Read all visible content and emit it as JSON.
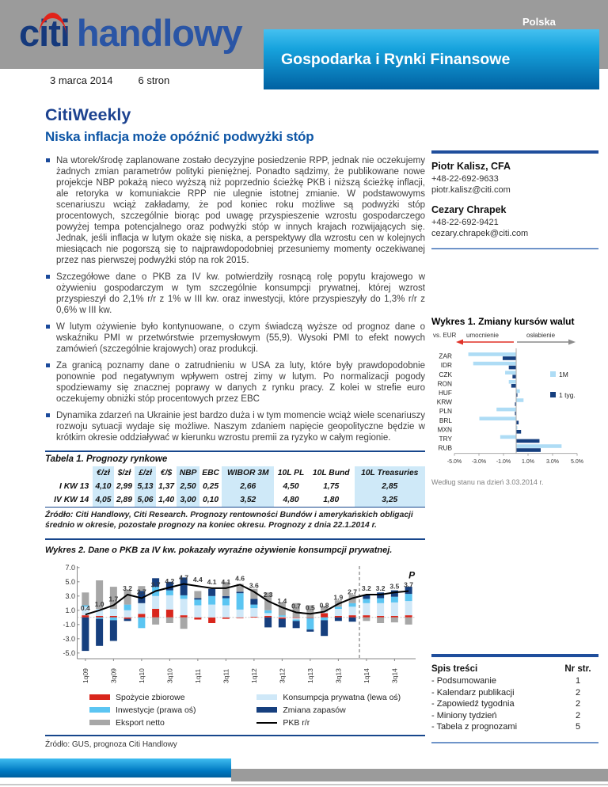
{
  "colors": {
    "brand_navy": "#17468c",
    "accent_blue": "#0e56a6",
    "banner_top": "#45c0f0",
    "banner_bottom": "#0061a2",
    "header_gray": "#9b9b9b",
    "table_shade": "#cfe9f8",
    "rule_navy": "#1f4e9c",
    "logo_red": "#e2231a"
  },
  "header": {
    "logo": {
      "citi": "citi",
      "handlowy": "handlowy"
    },
    "country_label": "Polska",
    "banner_title": "Gospodarka i Rynki Finansowe",
    "date": "3 marca 2014",
    "pages": "6 stron"
  },
  "main": {
    "title": "CitiWeekly",
    "subtitle": "Niska inflacja może opóźnić podwyżki stóp",
    "bullets": [
      "Na wtorek/środę zaplanowane zostało decyzyjne posiedzenie RPP, jednak nie oczekujemy żadnych zmian parametrów polityki pieniężnej. Ponadto sądzimy, że publikowane nowe projekcje NBP pokażą nieco wyższą niż poprzednio ścieżkę PKB i niższą ścieżkę inflacji, ale retoryka w komuniakcie RPP nie ulegnie istotnej zmianie. W podstawowyms scenariuszu wciąż zakładamy, że pod koniec roku możliwe są podwyżki stóp procentowych, szczególnie biorąc pod uwagę przyspieszenie wzrostu gospodarczego powyżej tempa potencjalnego oraz podwyżki stóp w innych krajach rozwijających się. Jednak, jeśli inflacja w lutym okaże się niska, a perspektywy dla wzrostu cen w kolejnych miesiącach nie pogorszą się to najprawdopodobniej przesuniemy momenty oczekiwanej przez nas pierwszej podwyżki stóp na rok 2015.",
      "Szczegółowe dane o PKB za IV kw. potwierdziły rosnącą rolę popytu krajowego w ożywieniu gospodarczym w tym szczególnie konsumpcji prywatnej, której wzrost przyspieszył do 2,1% r/r z 1% w III kw. oraz inwestycji, które przyspieszyły do 1,3% r/r z 0,6% w III kw.",
      "W lutym ożywienie było kontynuowane, o czym świadczą wyższe od prognoz dane o wskaźniku PMI w przetwórstwie przemysłowym (55,9). Wysoki PMI to efekt nowych zamówień (szczególnie krajowych) oraz produkcji.",
      "Za granicą poznamy dane o zatrudnieniu w USA za luty, które były prawdopodobnie ponownie pod negatywnym wpływem ostrej zimy w lutym. Po normalizacji pogody spodziewamy się znacznej poprawy w danych z rynku pracy. Z kolei w strefie euro oczekujemy obniżki stóp procentowych przez EBC",
      "Dynamika zdarzeń na Ukrainie jest bardzo duża i w tym momencie wciąż wiele scenariuszy rozwoju sytuacji wydaje się możliwe. Naszym zdaniem napięcie geopolityczne będzie w krótkim okresie oddziaływać w kierunku wzrostu premii za ryzyko w całym regionie."
    ]
  },
  "contacts": [
    {
      "name": "Piotr Kalisz, CFA",
      "phone": "+48-22-692-9633",
      "email": "piotr.kalisz@citi.com"
    },
    {
      "name": "Cezary Chrapek",
      "phone": "+48-22-692-9421",
      "email": "cezary.chrapek@citi.com"
    }
  ],
  "table1": {
    "title": "Tabela 1. Prognozy rynkowe",
    "columns": [
      "",
      "€/zł",
      "$/zł",
      "£/zł",
      "€/$",
      "NBP",
      "EBC",
      "WIBOR 3M",
      "10L PL",
      "10L Bund",
      "10L Treasuries"
    ],
    "rows": [
      [
        "I KW 13",
        "4,10",
        "2,99",
        "5,13",
        "1,37",
        "2,50",
        "0,25",
        "2,66",
        "4,50",
        "1,75",
        "2,85"
      ],
      [
        "IV KW 14",
        "4,05",
        "2,89",
        "5,06",
        "1,40",
        "3,00",
        "0,10",
        "3,52",
        "4,80",
        "1,80",
        "3,25"
      ]
    ],
    "shaded_columns": [
      1,
      3,
      5,
      7,
      10
    ],
    "source": "Źródło: Citi Handlowy, Citi Research. Prognozy rentowności Bundów i amerykańskich obligacji średnio w okresie, pozostałe prognozy na koniec okresu. Prognozy z dnia 22.1.2014 r."
  },
  "toc": {
    "title": "Spis treści",
    "page_header": "Nr str.",
    "items": [
      {
        "label": "- Podsumowanie",
        "page": "1"
      },
      {
        "label": "- Kalendarz publikacji",
        "page": "2"
      },
      {
        "label": "- Zapowiedź tygodnia",
        "page": "2"
      },
      {
        "label": "- Miniony tydzień",
        "page": "2"
      },
      {
        "label": "- Tabela z prognozami",
        "page": "5"
      }
    ]
  },
  "chart_data": [
    {
      "type": "bar",
      "orientation": "horizontal",
      "title": "Wykres 1. Zmiany kursów walut",
      "axis_note": "vs. EUR",
      "arrow_left_label": "umocnienie",
      "arrow_right_label": "osłabienie",
      "footnote": "Według stanu na dzień 3.03.2014 r.",
      "categories": [
        "ZAR",
        "IDR",
        "CZK",
        "RON",
        "HUF",
        "KRW",
        "PLN",
        "BRL",
        "MXN",
        "TRY",
        "RUB"
      ],
      "series": [
        {
          "name": "1M",
          "color": "#aedcf5",
          "values": [
            -3.9,
            -3.5,
            -0.9,
            -0.6,
            0.3,
            0.6,
            -1.6,
            -3.0,
            0.1,
            -1.3,
            3.7
          ]
        },
        {
          "name": "1 tyg.",
          "color": "#163f7e",
          "values": [
            -1.1,
            -0.6,
            -0.3,
            -0.4,
            0.1,
            -0.1,
            -0.1,
            0.2,
            0.4,
            1.9,
            2.0
          ]
        }
      ],
      "xticks": [
        -5,
        -3,
        -1,
        1,
        3,
        5
      ],
      "xtick_labels": [
        "-5.0%",
        "-3.0%",
        "-1.0%",
        "1.0%",
        "3.0%",
        "5.0%"
      ],
      "xlim": [
        -5,
        5
      ],
      "legend_position": "right"
    },
    {
      "type": "stacked-bar-line",
      "title": "Wykres 2. Dane o PKB za IV kw. pokazały wyraźne ożywienie konsumpcji prywatnej.",
      "categories": [
        "1q09",
        "2q09",
        "3q09",
        "4q09",
        "1q10",
        "2q10",
        "3q10",
        "4q10",
        "1q11",
        "2q11",
        "3q11",
        "4q11",
        "1q12",
        "2q12",
        "3q12",
        "4q12",
        "1q13",
        "2q13",
        "3q13",
        "4q13",
        "1q14",
        "2q14",
        "3q14",
        "4q14"
      ],
      "xtick_labels": [
        "1q09",
        "3q09",
        "1q10",
        "3q10",
        "1q11",
        "3q11",
        "1q12",
        "3q12",
        "1q13",
        "3q13",
        "1q14",
        "3q14"
      ],
      "series": [
        {
          "name": "Spożycie zbiorowe",
          "color": "#d9261c",
          "values": [
            0.3,
            0.2,
            0.2,
            -0.2,
            0.5,
            1.2,
            1.1,
            0.3,
            -0.3,
            -0.8,
            -0.2,
            -0.1,
            0.1,
            0.2,
            -0.2,
            -0.1,
            -0.1,
            0.6,
            0.2,
            0.3,
            0.3,
            0.2,
            0.2,
            0.3
          ]
        },
        {
          "name": "Konsumpcja prywatna (lewa oś)",
          "color": "#cfe8f8",
          "values": [
            1.2,
            1.0,
            1.0,
            1.0,
            1.5,
            1.8,
            2.0,
            2.3,
            1.7,
            1.8,
            1.7,
            1.1,
            1.2,
            0.4,
            0.1,
            -0.2,
            0.0,
            0.2,
            1.0,
            1.2,
            1.7,
            1.8,
            1.9,
            2.0
          ]
        },
        {
          "name": "Inwestycje (prawa oś)",
          "color": "#5bc5f2",
          "values": [
            0.2,
            -0.2,
            -0.4,
            0.8,
            -1.5,
            1.3,
            0.7,
            0.5,
            0.8,
            1.2,
            1.0,
            2.3,
            0.5,
            0.4,
            0.2,
            -0.2,
            -1.6,
            -0.4,
            0.3,
            0.5,
            0.6,
            0.7,
            0.8,
            1.0
          ]
        },
        {
          "name": "Zmiana zapasów",
          "color": "#163f7e",
          "values": [
            -4.7,
            -3.8,
            -2.9,
            -0.3,
            1.7,
            1.2,
            1.2,
            2.5,
            0.2,
            1.0,
            0.3,
            0.2,
            0.8,
            -1.4,
            -1.2,
            -1.0,
            -0.3,
            -2.2,
            -0.5,
            -0.6,
            0.6,
            0.8,
            0.9,
            1.0
          ]
        },
        {
          "name": "Eksport netto",
          "color": "#a7a7a7",
          "values": [
            1.8,
            4.0,
            3.1,
            2.1,
            0.7,
            -1.0,
            -0.8,
            -1.6,
            1.0,
            0.0,
            2.0,
            1.1,
            1.4,
            2.5,
            1.8,
            2.0,
            1.7,
            0.8,
            0.9,
            1.2,
            -0.5,
            -0.8,
            -0.7,
            -1.0
          ]
        }
      ],
      "line": {
        "name": "PKB r/r",
        "color": "#000000",
        "values": [
          0.4,
          1.0,
          1.7,
          3.2,
          2.7,
          3.7,
          4.2,
          4.7,
          4.4,
          4.1,
          4.1,
          4.6,
          3.6,
          2.3,
          1.4,
          0.7,
          0.5,
          0.8,
          1.9,
          2.7,
          3.2,
          3.2,
          3.5,
          3.7
        ],
        "labels": [
          "0.4",
          "1.0",
          "1.7",
          "3.2",
          "2.7",
          "3.7",
          "4.2",
          "4.7",
          "4.4",
          "4.1",
          "4.1",
          "4.6",
          "3.6",
          "2.3",
          "1.4",
          "0.7",
          "0.5",
          "0.8",
          "1.9",
          "2.7",
          "3.2",
          "3.2",
          "3.5",
          "3.7"
        ]
      },
      "yticks": [
        7.0,
        5.0,
        3.0,
        1.0,
        -1.0,
        -3.0,
        -5.0
      ],
      "ylim": [
        -5.8,
        7.2
      ],
      "forecast_separator_after": "4q13",
      "forecast_label": "P",
      "source": "Źródło: GUS, prognoza Citi Handlowy"
    }
  ]
}
